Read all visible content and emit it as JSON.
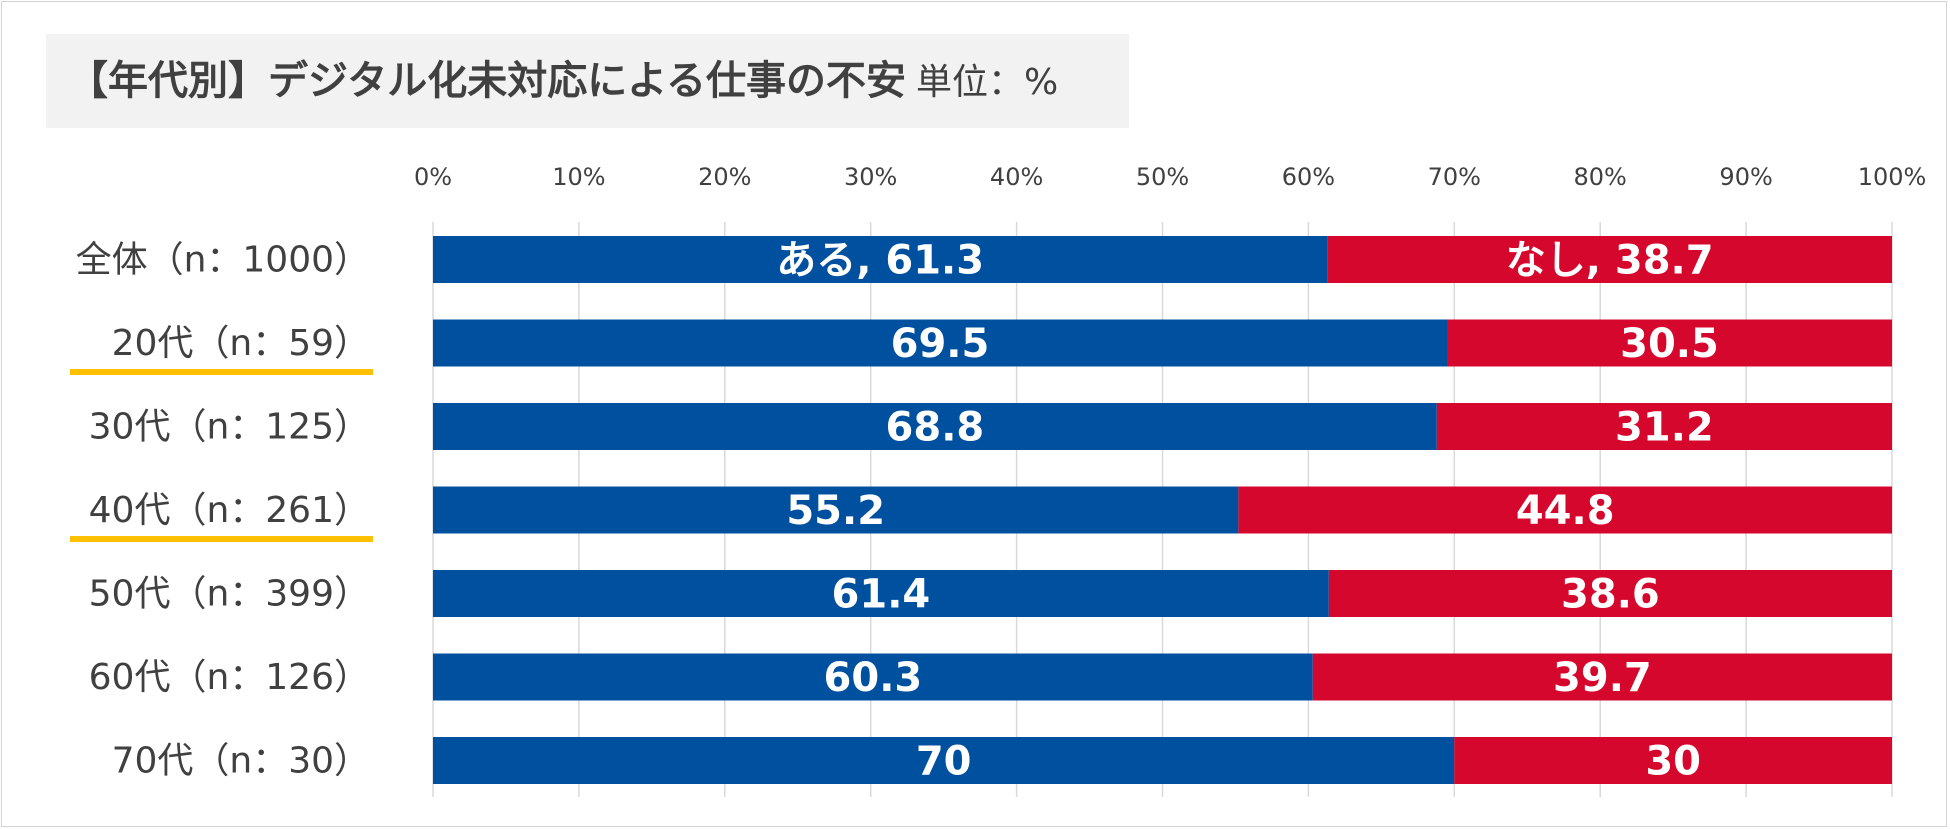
{
  "title": {
    "main": "【年代別】デジタル化未対応による仕事の不安",
    "unit": "単位：%"
  },
  "chart_data": {
    "type": "bar",
    "orientation": "horizontal",
    "stacked": true,
    "title": "【年代別】デジタル化未対応による仕事の不安",
    "xlim": [
      0,
      100
    ],
    "x_ticks": [
      "0%",
      "10%",
      "20%",
      "30%",
      "40%",
      "50%",
      "60%",
      "70%",
      "80%",
      "90%",
      "100%"
    ],
    "grid": true,
    "categories": [
      "全体（n：1000）",
      "20代（n：59）",
      "30代（n：125）",
      "40代（n：261）",
      "50代（n：399）",
      "60代（n：126）",
      "70代（n：30）"
    ],
    "highlighted_categories": [
      "20代（n：59）",
      "40代（n：261）"
    ],
    "series": [
      {
        "name": "ある",
        "color": "#0050a0",
        "values": [
          61.3,
          69.5,
          68.8,
          55.2,
          61.4,
          60.3,
          70
        ],
        "labels": [
          "ある, 61.3",
          "69.5",
          "68.8",
          "55.2",
          "61.4",
          "60.3",
          "70"
        ]
      },
      {
        "name": "なし",
        "color": "#d6072c",
        "values": [
          38.7,
          30.5,
          31.2,
          44.8,
          38.6,
          39.7,
          30
        ],
        "labels": [
          "なし, 38.7",
          "30.5",
          "31.2",
          "44.8",
          "38.6",
          "39.7",
          "30"
        ]
      }
    ],
    "highlight_color": "#ffc000",
    "gridline_color": "#d9d9d9"
  }
}
